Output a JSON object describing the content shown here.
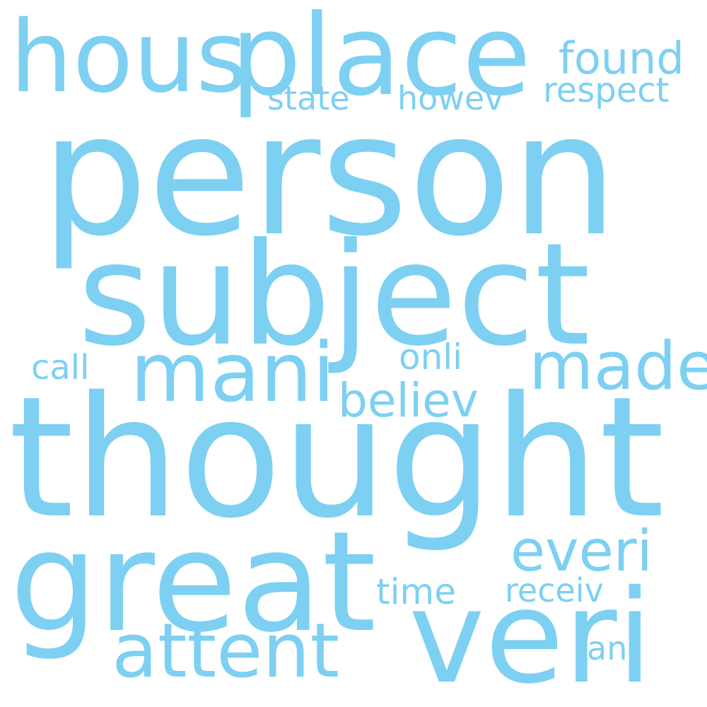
{
  "cloud": {
    "color": "#7dd0f2",
    "background": "#ffffff",
    "words": [
      {
        "id": "person",
        "text": "person"
      },
      {
        "id": "thought",
        "text": "thought"
      },
      {
        "id": "subject",
        "text": "subject"
      },
      {
        "id": "great",
        "text": "great"
      },
      {
        "id": "veri",
        "text": "veri"
      },
      {
        "id": "place",
        "text": "place"
      },
      {
        "id": "hous",
        "text": "hous"
      },
      {
        "id": "mani",
        "text": "mani"
      },
      {
        "id": "attent",
        "text": "attent"
      },
      {
        "id": "made",
        "text": "made"
      },
      {
        "id": "everi",
        "text": "everi"
      },
      {
        "id": "believ",
        "text": "believ"
      },
      {
        "id": "found",
        "text": "found"
      },
      {
        "id": "respect",
        "text": "respect"
      },
      {
        "id": "state",
        "text": "state"
      },
      {
        "id": "howev",
        "text": "howev"
      },
      {
        "id": "onli",
        "text": "onli"
      },
      {
        "id": "call",
        "text": "call"
      },
      {
        "id": "time",
        "text": "time"
      },
      {
        "id": "receiv",
        "text": "receiv"
      },
      {
        "id": "ani",
        "text": "ani"
      }
    ]
  }
}
